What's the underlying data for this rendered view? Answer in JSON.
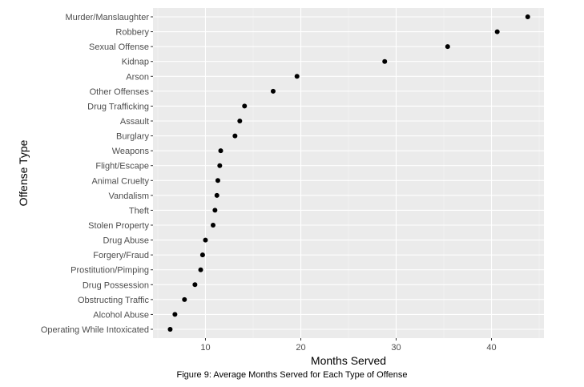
{
  "chart_data": {
    "type": "scatter",
    "xlabel": "Months Served",
    "ylabel": "Offense Type",
    "xlim": [
      4.5,
      45.5
    ],
    "xticks": [
      10,
      20,
      30,
      40
    ],
    "grid": true,
    "categories": [
      "Murder/Manslaughter",
      "Robbery",
      "Sexual Offense",
      "Kidnap",
      "Arson",
      "Other Offenses",
      "Drug Trafficking",
      "Assault",
      "Burglary",
      "Weapons",
      "Flight/Escape",
      "Animal Cruelty",
      "Vandalism",
      "Theft",
      "Stolen Property",
      "Drug Abuse",
      "Forgery/Fraud",
      "Prostitution/Pimping",
      "Drug Possession",
      "Obstructing Traffic",
      "Alcohol Abuse",
      "Operating While Intoxicated"
    ],
    "values": [
      43.8,
      40.6,
      35.4,
      28.8,
      19.6,
      17.1,
      14.1,
      13.6,
      13.1,
      11.6,
      11.5,
      11.3,
      11.2,
      11.0,
      10.8,
      10.0,
      9.7,
      9.5,
      8.9,
      7.8,
      6.8,
      6.3
    ]
  },
  "caption": "Figure 9: Average Months Served for Each Type of Offense"
}
